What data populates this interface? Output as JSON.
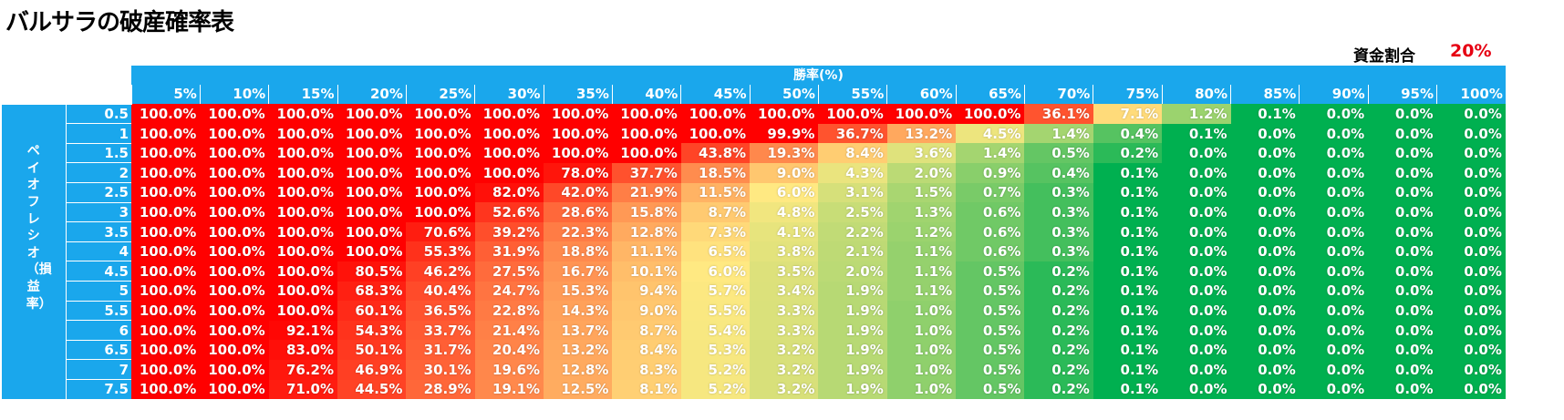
{
  "title": "バルサラの破産確率表",
  "fund_ratio": {
    "label": "資金割合",
    "value": "20%"
  },
  "chart_data": {
    "type": "heatmap",
    "title": "バルサラの破産確率表",
    "xlabel": "勝率(%)",
    "ylabel": "ペイオフレシオ（損益率）",
    "x": [
      "5%",
      "10%",
      "15%",
      "20%",
      "25%",
      "30%",
      "35%",
      "40%",
      "45%",
      "50%",
      "55%",
      "60%",
      "65%",
      "70%",
      "75%",
      "80%",
      "85%",
      "90%",
      "95%",
      "100%"
    ],
    "y": [
      "0.5",
      "1",
      "1.5",
      "2",
      "2.5",
      "3",
      "3.5",
      "4",
      "4.5",
      "5",
      "5.5",
      "6",
      "6.5",
      "7",
      "7.5"
    ],
    "values": [
      [
        100.0,
        100.0,
        100.0,
        100.0,
        100.0,
        100.0,
        100.0,
        100.0,
        100.0,
        100.0,
        100.0,
        100.0,
        100.0,
        36.1,
        7.1,
        1.2,
        0.1,
        0.0,
        0.0,
        0.0
      ],
      [
        100.0,
        100.0,
        100.0,
        100.0,
        100.0,
        100.0,
        100.0,
        100.0,
        100.0,
        99.9,
        36.7,
        13.2,
        4.5,
        1.4,
        0.4,
        0.1,
        0.0,
        0.0,
        0.0,
        0.0
      ],
      [
        100.0,
        100.0,
        100.0,
        100.0,
        100.0,
        100.0,
        100.0,
        100.0,
        43.8,
        19.3,
        8.4,
        3.6,
        1.4,
        0.5,
        0.2,
        0.0,
        0.0,
        0.0,
        0.0,
        0.0
      ],
      [
        100.0,
        100.0,
        100.0,
        100.0,
        100.0,
        100.0,
        78.0,
        37.7,
        18.5,
        9.0,
        4.3,
        2.0,
        0.9,
        0.4,
        0.1,
        0.0,
        0.0,
        0.0,
        0.0,
        0.0
      ],
      [
        100.0,
        100.0,
        100.0,
        100.0,
        100.0,
        82.0,
        42.0,
        21.9,
        11.5,
        6.0,
        3.1,
        1.5,
        0.7,
        0.3,
        0.1,
        0.0,
        0.0,
        0.0,
        0.0,
        0.0
      ],
      [
        100.0,
        100.0,
        100.0,
        100.0,
        100.0,
        52.6,
        28.6,
        15.8,
        8.7,
        4.8,
        2.5,
        1.3,
        0.6,
        0.3,
        0.1,
        0.0,
        0.0,
        0.0,
        0.0,
        0.0
      ],
      [
        100.0,
        100.0,
        100.0,
        100.0,
        70.6,
        39.2,
        22.3,
        12.8,
        7.3,
        4.1,
        2.2,
        1.2,
        0.6,
        0.3,
        0.1,
        0.0,
        0.0,
        0.0,
        0.0,
        0.0
      ],
      [
        100.0,
        100.0,
        100.0,
        100.0,
        55.3,
        31.9,
        18.8,
        11.1,
        6.5,
        3.8,
        2.1,
        1.1,
        0.6,
        0.3,
        0.1,
        0.0,
        0.0,
        0.0,
        0.0,
        0.0
      ],
      [
        100.0,
        100.0,
        100.0,
        80.5,
        46.2,
        27.5,
        16.7,
        10.1,
        6.0,
        3.5,
        2.0,
        1.1,
        0.5,
        0.2,
        0.1,
        0.0,
        0.0,
        0.0,
        0.0,
        0.0
      ],
      [
        100.0,
        100.0,
        100.0,
        68.3,
        40.4,
        24.7,
        15.3,
        9.4,
        5.7,
        3.4,
        1.9,
        1.1,
        0.5,
        0.2,
        0.1,
        0.0,
        0.0,
        0.0,
        0.0,
        0.0
      ],
      [
        100.0,
        100.0,
        100.0,
        60.1,
        36.5,
        22.8,
        14.3,
        9.0,
        5.5,
        3.3,
        1.9,
        1.0,
        0.5,
        0.2,
        0.1,
        0.0,
        0.0,
        0.0,
        0.0,
        0.0
      ],
      [
        100.0,
        100.0,
        92.1,
        54.3,
        33.7,
        21.4,
        13.7,
        8.7,
        5.4,
        3.3,
        1.9,
        1.0,
        0.5,
        0.2,
        0.1,
        0.0,
        0.0,
        0.0,
        0.0,
        0.0
      ],
      [
        100.0,
        100.0,
        83.0,
        50.1,
        31.7,
        20.4,
        13.2,
        8.4,
        5.3,
        3.2,
        1.9,
        1.0,
        0.5,
        0.2,
        0.1,
        0.0,
        0.0,
        0.0,
        0.0,
        0.0
      ],
      [
        100.0,
        100.0,
        76.2,
        46.9,
        30.1,
        19.6,
        12.8,
        8.3,
        5.2,
        3.2,
        1.9,
        1.0,
        0.5,
        0.2,
        0.1,
        0.0,
        0.0,
        0.0,
        0.0,
        0.0
      ],
      [
        100.0,
        100.0,
        71.0,
        44.5,
        28.9,
        19.1,
        12.5,
        8.1,
        5.2,
        3.2,
        1.9,
        1.0,
        0.5,
        0.2,
        0.1,
        0.0,
        0.0,
        0.0,
        0.0,
        0.0
      ]
    ],
    "value_format": "percent-1dp",
    "colors": {
      "high": "#ff0000",
      "mid": "#ffe982",
      "low": "#00b050",
      "header": "#1aa7ec",
      "accent": "#e60012"
    }
  }
}
